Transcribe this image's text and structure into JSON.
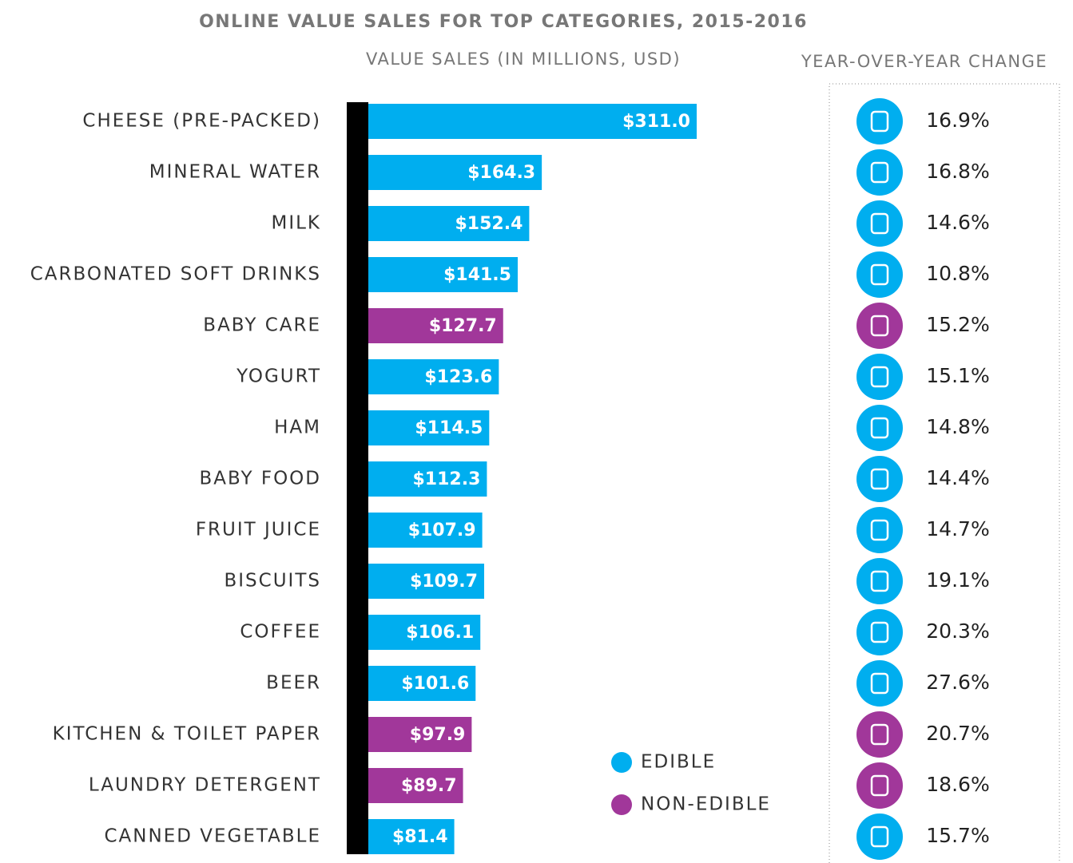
{
  "chart_data": {
    "type": "bar",
    "title": "ONLINE VALUE SALES FOR TOP CATEGORIES, 2015-2016",
    "subtitle": "VALUE SALES (IN MILLIONS, USD)",
    "categories": [
      "CHEESE (PRE-PACKED)",
      "MINERAL WATER",
      "MILK",
      "CARBONATED SOFT DRINKS",
      "BABY CARE",
      "YOGURT",
      "HAM",
      "BABY FOOD",
      "FRUIT JUICE",
      "BISCUITS",
      "COFFEE",
      "BEER",
      "KITCHEN & TOILET PAPER",
      "LAUNDRY DETERGENT",
      "CANNED VEGETABLE"
    ],
    "series": [
      {
        "name": "EDIBLE",
        "color": "#00aeef",
        "values": [
          311.0,
          164.3,
          152.4,
          141.5,
          null,
          123.6,
          114.5,
          112.3,
          107.9,
          109.7,
          106.1,
          101.6,
          null,
          null,
          81.4
        ],
        "value_labels": [
          "$311.0",
          "$164.3",
          "$152.4",
          "$141.5",
          null,
          "$123.6",
          "$114.5",
          "$112.3",
          "$107.9",
          "$109.7",
          "$106.1",
          "$101.6",
          null,
          null,
          "$81.4"
        ]
      },
      {
        "name": "NON-EDIBLE",
        "color": "#a1379a",
        "values": [
          null,
          null,
          null,
          null,
          127.7,
          null,
          null,
          null,
          null,
          null,
          null,
          null,
          97.9,
          89.7,
          null
        ],
        "value_labels": [
          null,
          null,
          null,
          null,
          "$127.7",
          null,
          null,
          null,
          null,
          null,
          null,
          null,
          "$97.9",
          "$89.7",
          null
        ]
      }
    ],
    "yoy": {
      "title": "YEAR-OVER-YEAR CHANGE",
      "values": [
        16.9,
        16.8,
        14.6,
        10.8,
        15.2,
        15.1,
        14.8,
        14.4,
        14.7,
        19.1,
        20.3,
        27.6,
        20.7,
        18.6,
        15.7
      ],
      "value_labels": [
        "16.9%",
        "16.8%",
        "14.6%",
        "10.8%",
        "15.2%",
        "15.1%",
        "14.8%",
        "14.4%",
        "14.7%",
        "19.1%",
        "20.3%",
        "27.6%",
        "20.7%",
        "18.6%",
        "15.7%"
      ]
    }
  }
}
